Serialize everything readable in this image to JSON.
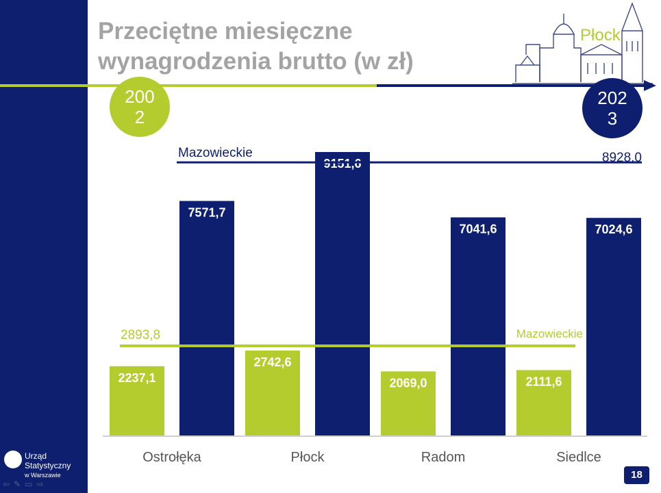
{
  "slide": {
    "title": "Przeciętne miesięczne wynagrodzenia brutto (w zł)",
    "city": "Płock",
    "year_start": "200\n2",
    "year_end": "202\n3",
    "page_number": "18",
    "logo_line1": "Urząd Statystyczny",
    "logo_line2": "w Warszawie"
  },
  "colors": {
    "dark_blue": "#0d1f6e",
    "green": "#b5cc2e",
    "gray_title": "#a3a3a3",
    "white": "#ffffff"
  },
  "icons": [
    "prev-arrow-icon",
    "pencil-icon",
    "screen-icon",
    "next-arrow-icon",
    "cathedral-illustration"
  ],
  "chart_data": {
    "type": "bar",
    "title": "Przeciętne miesięczne wynagrodzenia brutto (w zł)",
    "categories": [
      "Ostrołęka",
      "Płock",
      "Radom",
      "Siedlce"
    ],
    "series": [
      {
        "name": "2002",
        "color": "#b5cc2e",
        "values": [
          2237.1,
          2742.6,
          2069.0,
          2111.6
        ],
        "labels": [
          "2237,1",
          "2742,6",
          "2069,0",
          "2111,6"
        ]
      },
      {
        "name": "2023",
        "color": "#0d1f6e",
        "values": [
          7571.7,
          9151.6,
          7041.6,
          7024.6
        ],
        "labels": [
          "7571,7",
          "9151,6",
          "7041,6",
          "7024,6"
        ]
      }
    ],
    "reference_lines": [
      {
        "name": "Mazowieckie",
        "year": "2002",
        "value": 2893.8,
        "label": "2893,8",
        "color": "#b5cc2e"
      },
      {
        "name": "Mazowieckie",
        "year": "2023",
        "value": 8928.0,
        "label": "8928,0",
        "color": "#0d1f6e"
      }
    ],
    "ylim": [
      0,
      9700
    ],
    "grid": false
  }
}
